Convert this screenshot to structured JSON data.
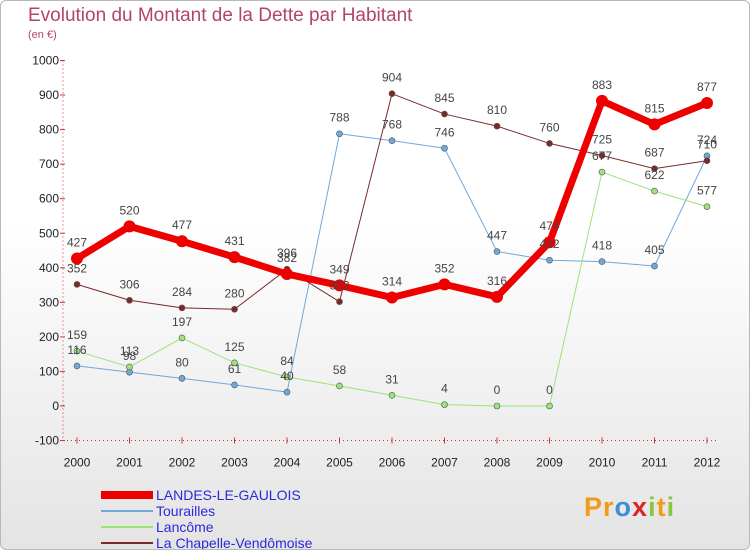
{
  "title": "Evolution du Montant de la Dette par Habitant",
  "subtitle": "(en €)",
  "logo": {
    "text": "Proxiti",
    "letters": [
      "P",
      "r",
      "o",
      "x",
      "i",
      "t",
      "i"
    ],
    "colors": [
      "#f19b1b",
      "#f19b1b",
      "#3b8fd6",
      "#d8262a",
      "#8cc63f",
      "#f19b1b",
      "#8cc63f"
    ]
  },
  "chart_data": {
    "type": "line",
    "x": [
      "2000",
      "2001",
      "2002",
      "2003",
      "2004",
      "2005",
      "2006",
      "2007",
      "2008",
      "2009",
      "2010",
      "2011",
      "2012"
    ],
    "ylim": [
      -100,
      1000
    ],
    "yticks": [
      -100,
      0,
      100,
      200,
      300,
      400,
      500,
      600,
      700,
      800,
      900,
      1000
    ],
    "grid": false,
    "legend_position": "bottom",
    "series": [
      {
        "name": "LANDES-LE-GAULOIS",
        "color": "#ee0000",
        "width": 7,
        "marker": 6,
        "values": [
          427,
          520,
          477,
          431,
          382,
          349,
          314,
          352,
          316,
          474,
          883,
          815,
          877
        ]
      },
      {
        "name": "Tourailles",
        "color": "#6fa8dc",
        "width": 1,
        "marker": 3,
        "values": [
          116,
          98,
          80,
          61,
          40,
          788,
          768,
          746,
          447,
          422,
          418,
          405,
          724
        ]
      },
      {
        "name": "Lancôme",
        "color": "#9de37a",
        "width": 1,
        "marker": 3,
        "values": [
          159,
          113,
          197,
          125,
          84,
          58,
          31,
          4,
          0,
          0,
          677,
          622,
          577
        ]
      },
      {
        "name": "La Chapelle-Vendômoise",
        "color": "#7b2a2a",
        "width": 1,
        "marker": 3,
        "values": [
          352,
          306,
          284,
          280,
          396,
          302,
          904,
          845,
          810,
          760,
          725,
          687,
          710
        ]
      }
    ]
  }
}
